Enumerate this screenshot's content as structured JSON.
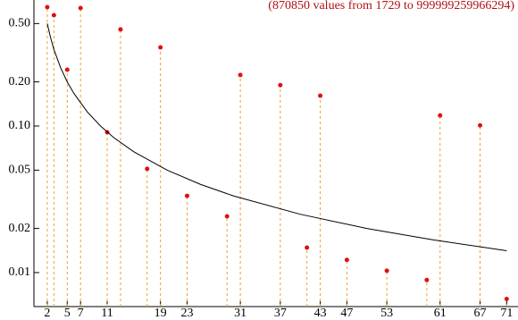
{
  "chart_data": {
    "type": "scatter",
    "annotation": "(870850 values from  1729 to  999999259966294)",
    "annotation_color": "#b01010",
    "log_y": true,
    "xlim": [
      0,
      72.7
    ],
    "ylim": [
      0.00586,
      0.724
    ],
    "xticks": [
      2,
      5,
      7,
      11,
      19,
      23,
      31,
      37,
      43,
      47,
      53,
      61,
      67,
      71
    ],
    "yticks": [
      {
        "value": 0.5,
        "label": "0.50"
      },
      {
        "value": 0.2,
        "label": "0.20"
      },
      {
        "value": 0.1,
        "label": "0.10"
      },
      0.05,
      0.02,
      0.01
    ],
    "series": [
      {
        "type": "scatter",
        "color": "#e01010",
        "stem_color": "#f0a030",
        "x": [
          2,
          3,
          5,
          7,
          11,
          13,
          17,
          19,
          23,
          29,
          31,
          37,
          41,
          43,
          47,
          53,
          59,
          61,
          67,
          71
        ],
        "values": [
          0.647,
          0.57,
          0.242,
          0.638,
          0.0906,
          0.456,
          0.051,
          0.344,
          0.0334,
          0.0242,
          0.223,
          0.19,
          0.0148,
          0.161,
          0.0122,
          0.0103,
          0.0089,
          0.118,
          0.101,
          0.0066
        ]
      },
      {
        "type": "line",
        "color": "#000000",
        "x": [
          2,
          2.5,
          3,
          4,
          5,
          6,
          8,
          10,
          12,
          15,
          20,
          25,
          30,
          40,
          50,
          60,
          71
        ],
        "values": [
          0.5,
          0.4,
          0.333,
          0.25,
          0.2,
          0.167,
          0.125,
          0.1,
          0.0833,
          0.0667,
          0.05,
          0.04,
          0.0333,
          0.025,
          0.02,
          0.0167,
          0.0141
        ]
      }
    ]
  }
}
